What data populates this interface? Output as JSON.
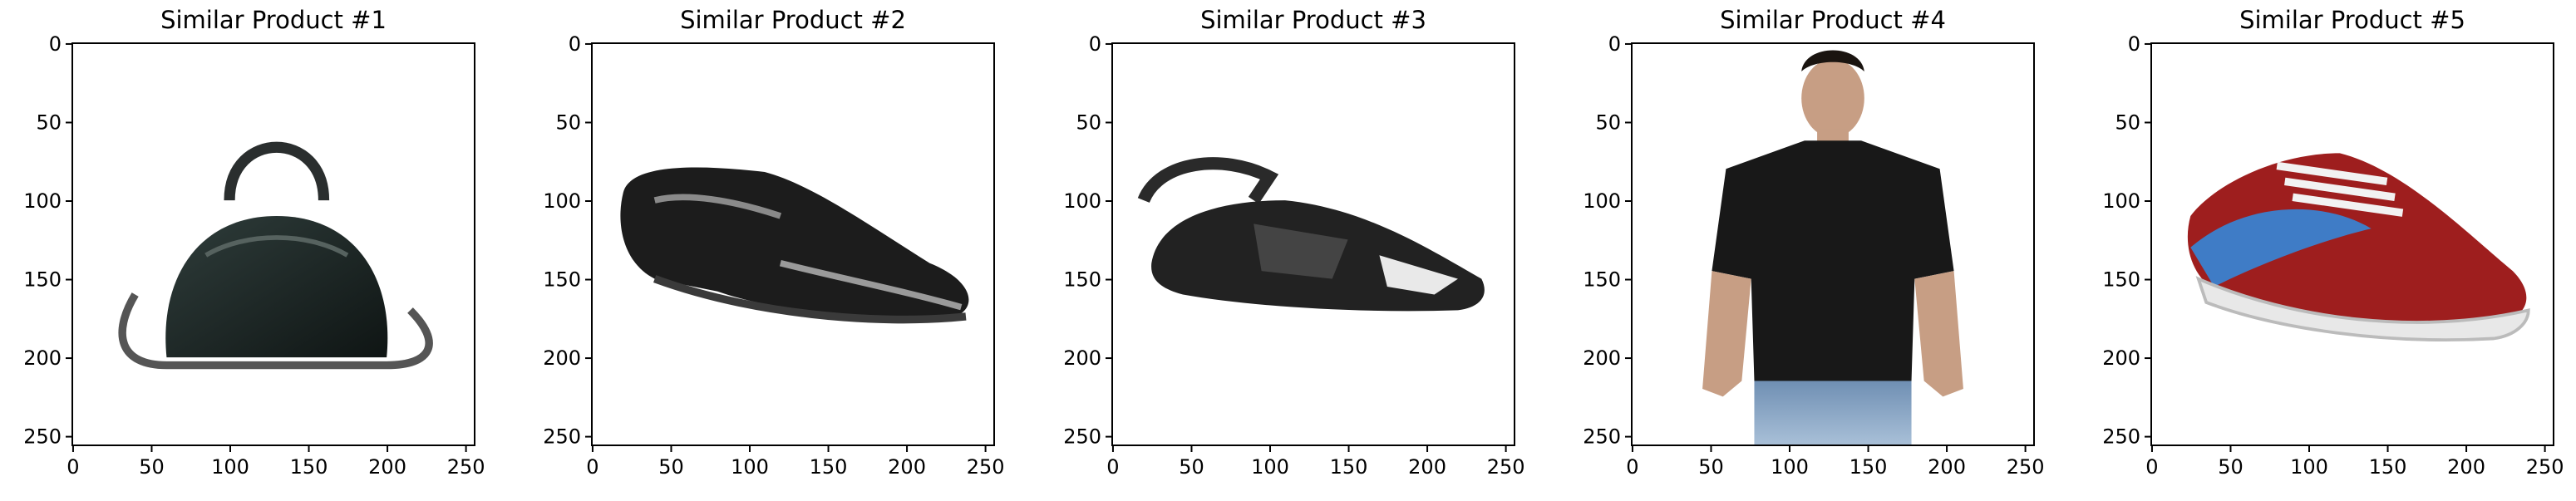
{
  "figure": {
    "panels": [
      {
        "title": "Similar Product #1",
        "image": "handbag"
      },
      {
        "title": "Similar Product #2",
        "image": "formal-shoe"
      },
      {
        "title": "Similar Product #3",
        "image": "sandal"
      },
      {
        "title": "Similar Product #4",
        "image": "man-in-tshirt"
      },
      {
        "title": "Similar Product #5",
        "image": "sneaker"
      }
    ],
    "x_ticks": [
      "0",
      "50",
      "100",
      "150",
      "200",
      "250"
    ],
    "y_ticks": [
      "0",
      "50",
      "100",
      "150",
      "200",
      "250"
    ],
    "pixel_extent": 256
  }
}
